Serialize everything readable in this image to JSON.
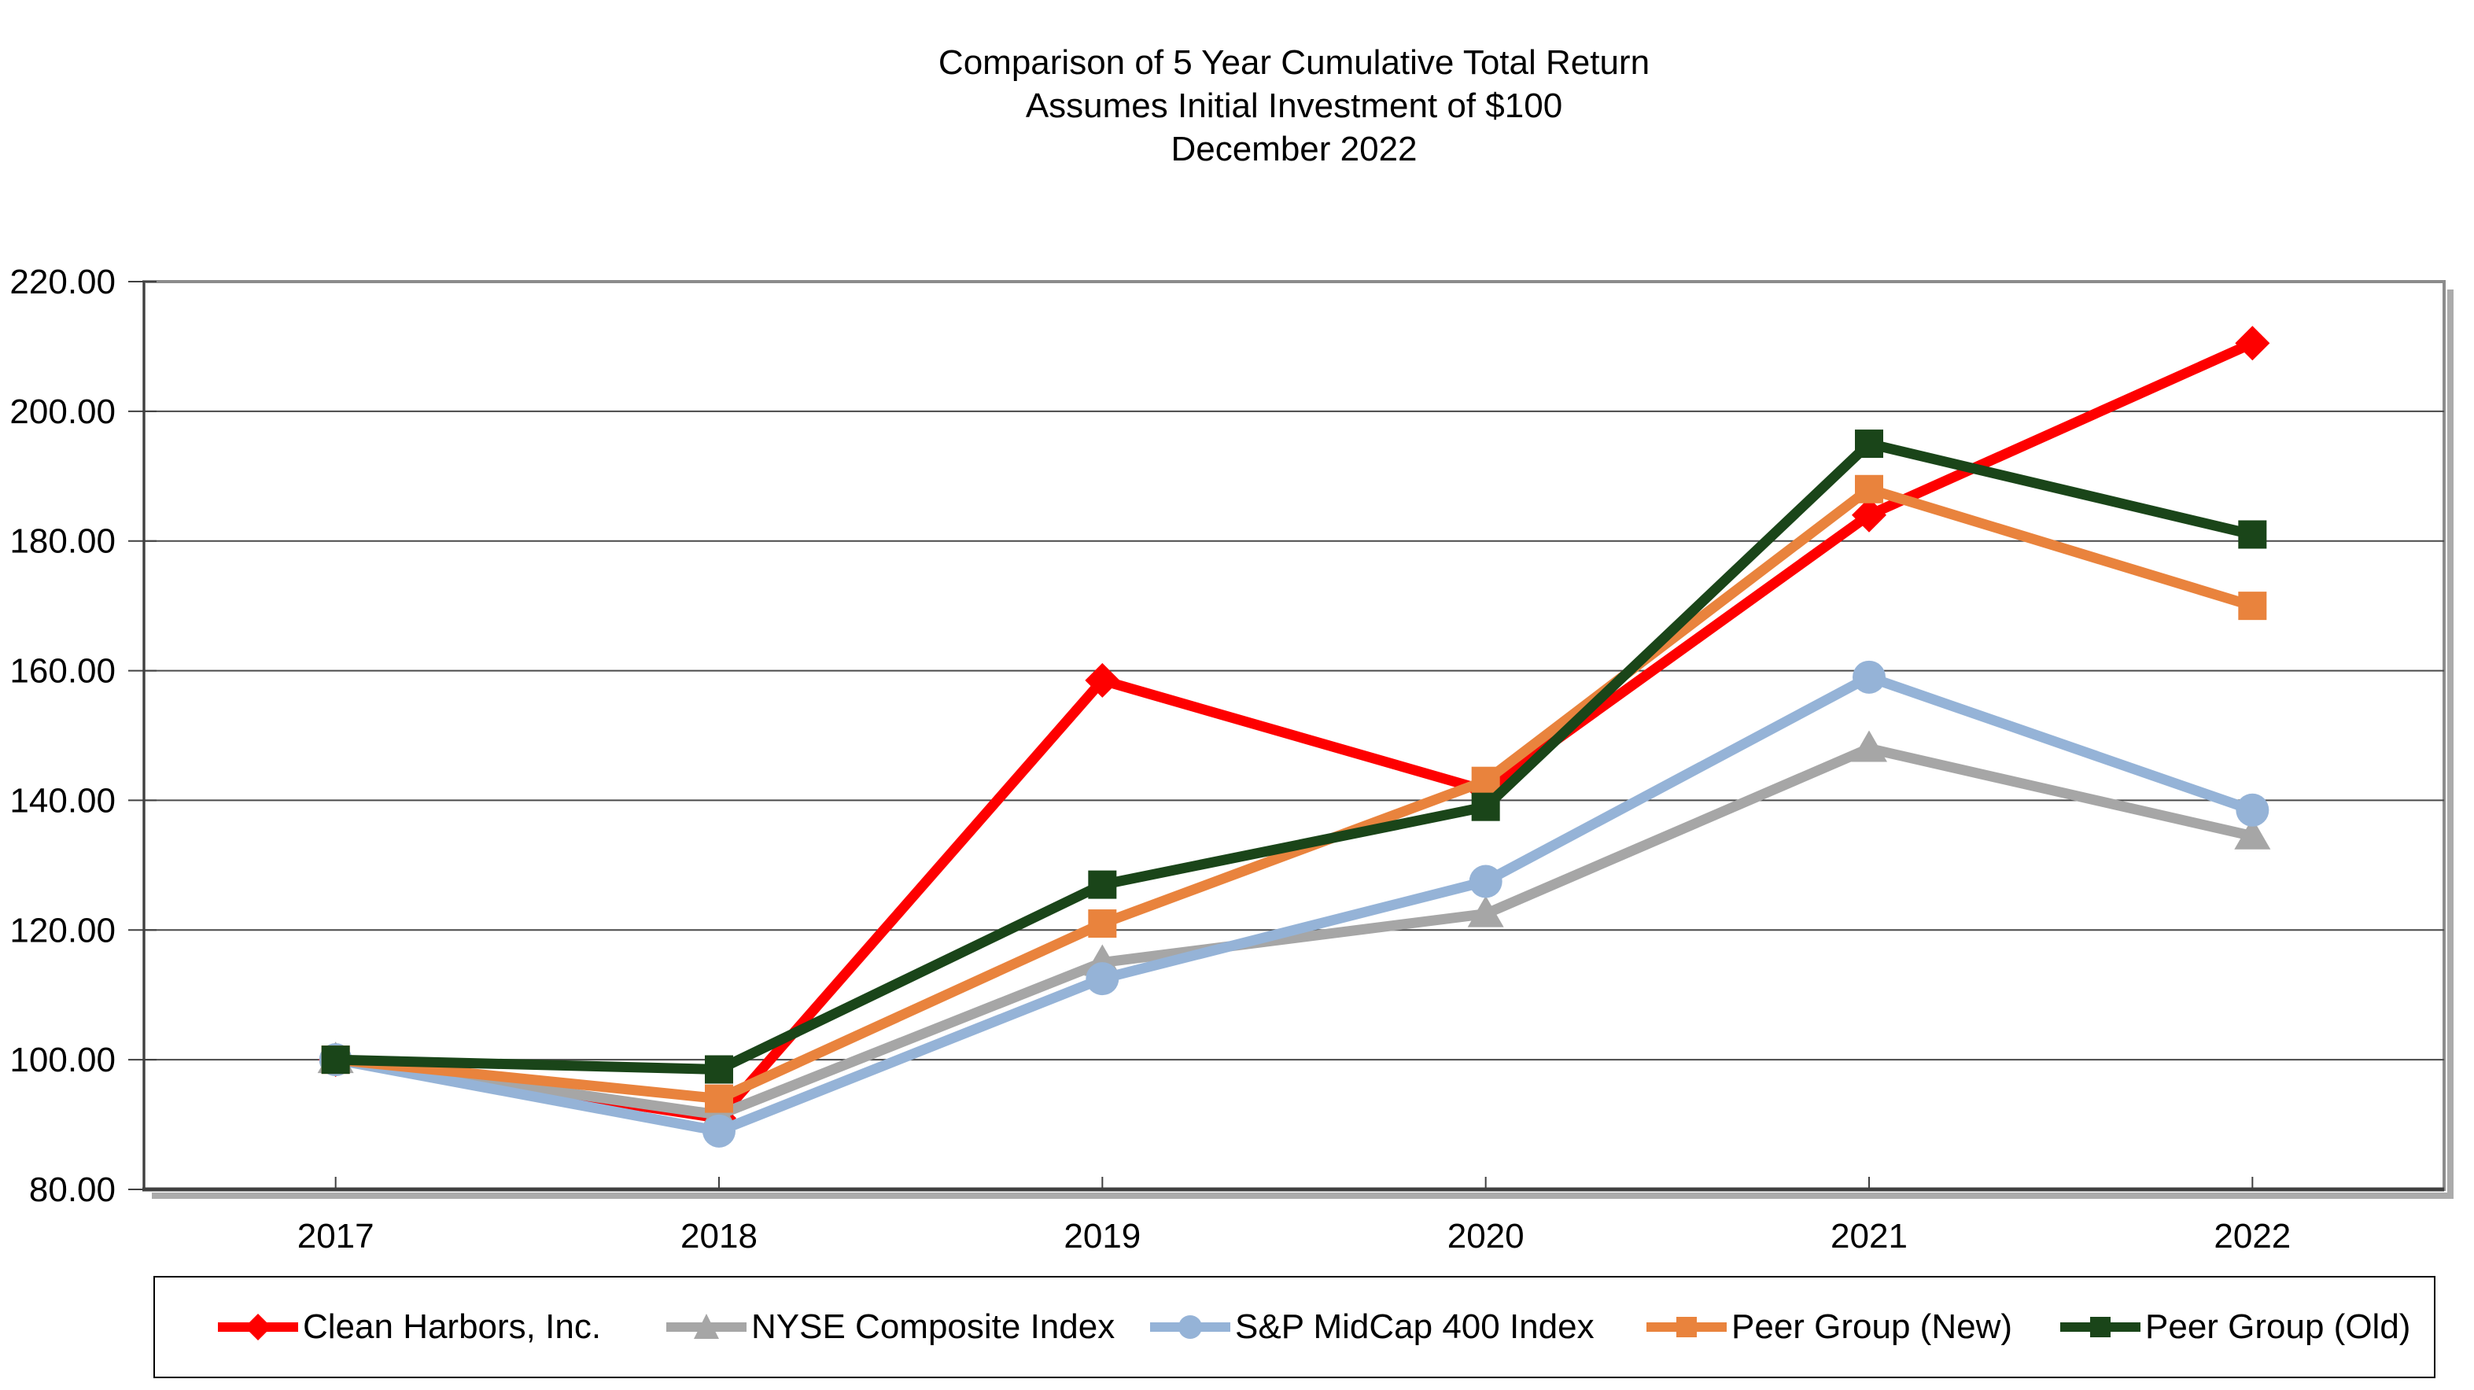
{
  "title": {
    "line1": "Comparison of 5 Year Cumulative Total Return",
    "line2": "Assumes Initial Investment of $100",
    "line3": "December 2022"
  },
  "chart_data": {
    "type": "line",
    "categories": [
      "2017",
      "2018",
      "2019",
      "2020",
      "2021",
      "2022"
    ],
    "x_tick_labels": [
      "2017",
      "2018",
      "2019",
      "2020",
      "2021",
      "2022"
    ],
    "y_tick_labels": [
      "80.00",
      "100.00",
      "120.00",
      "140.00",
      "160.00",
      "180.00",
      "200.00",
      "220.00"
    ],
    "ylim": [
      80,
      220
    ],
    "y_tick_step": 20,
    "grid": "horizontal",
    "legend_position": "bottom",
    "series": [
      {
        "name": "Clean Harbors, Inc.",
        "color": "#FE0000",
        "marker": "diamond",
        "values": [
          100,
          91.0,
          158.5,
          141.5,
          184.0,
          210.5
        ]
      },
      {
        "name": "NYSE Composite Index",
        "color": "#A6A6A6",
        "marker": "triangle",
        "values": [
          100,
          91.5,
          115.0,
          122.5,
          148.0,
          134.5
        ]
      },
      {
        "name": "S&P MidCap 400 Index",
        "color": "#95B3D7",
        "marker": "circle",
        "values": [
          100,
          89.0,
          112.5,
          127.5,
          159.0,
          138.5
        ]
      },
      {
        "name": "Peer Group (New)",
        "color": "#E9833D",
        "marker": "square",
        "values": [
          100,
          94.0,
          121.0,
          143.0,
          188.0,
          170.0
        ]
      },
      {
        "name": "Peer Group (Old)",
        "color": "#1A4519",
        "marker": "square",
        "values": [
          100,
          98.5,
          127.0,
          139.0,
          195.0,
          181.0
        ]
      }
    ],
    "axis_colors": {
      "gridline": "#4A4A4A",
      "plot_border": "#8C8C8C",
      "axis_line": "#404040",
      "shadow": "#ABABAB"
    }
  }
}
